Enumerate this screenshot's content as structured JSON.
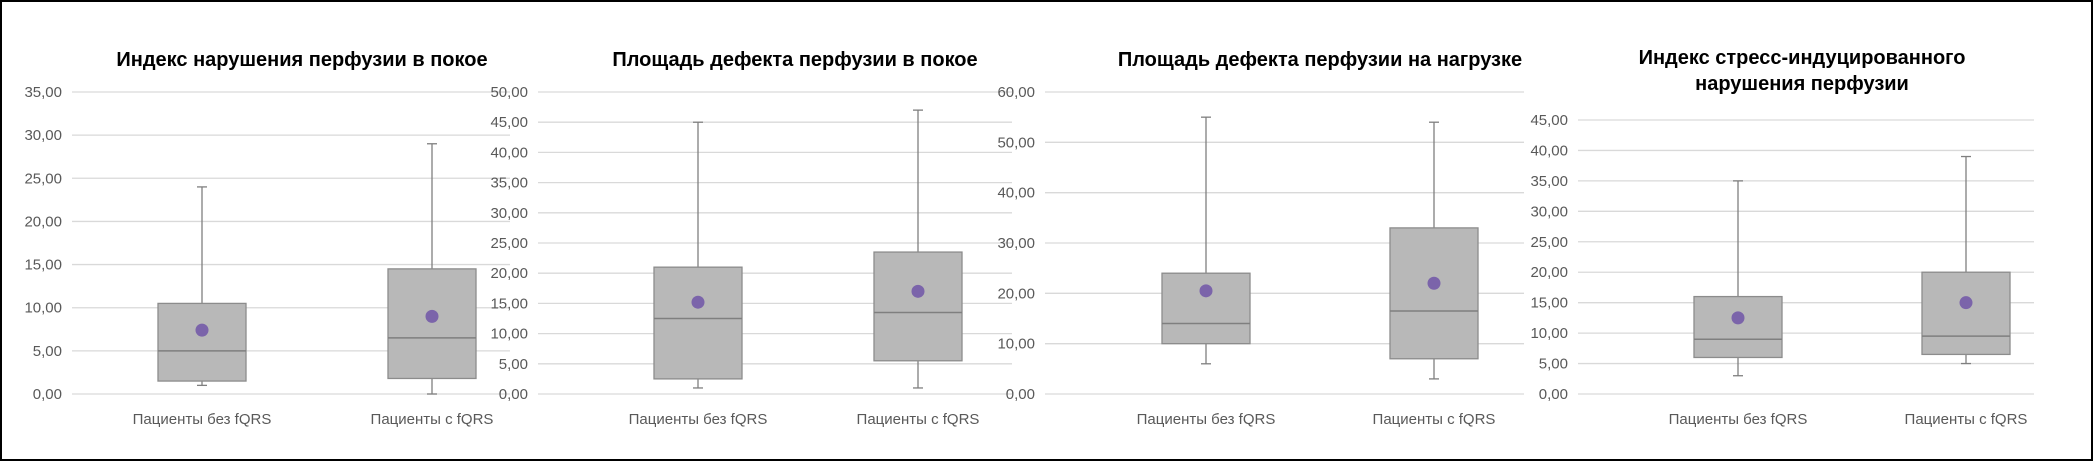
{
  "colors": {
    "box_fill": "#b8b8b8",
    "box_stroke": "#8c8c8c",
    "median": "#7f7f7f",
    "whisker": "#7f7f7f",
    "mean_marker": "#7b64aa",
    "grid": "#d9d9d9",
    "axis_text": "#595959"
  },
  "chart_data": [
    {
      "type": "box",
      "title": [
        "Индекс нарушения перфузии в покое"
      ],
      "ylim": [
        0,
        35
      ],
      "ytick_step": 5,
      "yticks": [
        "0,00",
        "5,00",
        "10,00",
        "15,00",
        "20,00",
        "25,00",
        "30,00",
        "35,00"
      ],
      "categories": [
        "Пациенты без fQRS",
        "Пациенты с fQRS"
      ],
      "series": [
        {
          "min": 1.0,
          "q1": 1.5,
          "median": 5.0,
          "q3": 10.5,
          "max": 24.0,
          "mean": 7.4
        },
        {
          "min": 0.0,
          "q1": 1.8,
          "median": 6.5,
          "q3": 14.5,
          "max": 29.0,
          "mean": 9.0
        }
      ]
    },
    {
      "type": "box",
      "title": [
        "Площадь дефекта перфузии в покое"
      ],
      "ylim": [
        0,
        50
      ],
      "ytick_step": 5,
      "yticks": [
        "0,00",
        "5,00",
        "10,00",
        "15,00",
        "20,00",
        "25,00",
        "30,00",
        "35,00",
        "40,00",
        "45,00",
        "50,00"
      ],
      "categories": [
        "Пациенты без fQRS",
        "Пациенты с fQRS"
      ],
      "series": [
        {
          "min": 1.0,
          "q1": 2.5,
          "median": 12.5,
          "q3": 21.0,
          "max": 45.0,
          "mean": 15.2
        },
        {
          "min": 1.0,
          "q1": 5.5,
          "median": 13.5,
          "q3": 23.5,
          "max": 47.0,
          "mean": 17.0
        }
      ]
    },
    {
      "type": "box",
      "title": [
        "Площадь дефекта перфузии на нагрузке"
      ],
      "ylim": [
        0,
        60
      ],
      "ytick_step": 10,
      "yticks": [
        "0,00",
        "10,00",
        "20,00",
        "30,00",
        "40,00",
        "50,00",
        "60,00"
      ],
      "categories": [
        "Пациенты без fQRS",
        "Пациенты с fQRS"
      ],
      "series": [
        {
          "min": 6.0,
          "q1": 10.0,
          "median": 14.0,
          "q3": 24.0,
          "max": 55.0,
          "mean": 20.5
        },
        {
          "min": 3.0,
          "q1": 7.0,
          "median": 16.5,
          "q3": 33.0,
          "max": 54.0,
          "mean": 22.0
        }
      ]
    },
    {
      "type": "box",
      "title": [
        "Индекс стресс-индуцированного",
        "нарушения перфузии"
      ],
      "ylim": [
        0,
        45
      ],
      "ytick_step": 5,
      "yticks": [
        "0,00",
        "5,00",
        "10,00",
        "15,00",
        "20,00",
        "25,00",
        "30,00",
        "35,00",
        "40,00",
        "45,00"
      ],
      "categories": [
        "Пациенты без fQRS",
        "Пациенты с fQRS"
      ],
      "series": [
        {
          "min": 3.0,
          "q1": 6.0,
          "median": 9.0,
          "q3": 16.0,
          "max": 35.0,
          "mean": 12.5
        },
        {
          "min": 5.0,
          "q1": 6.5,
          "median": 9.5,
          "q3": 20.0,
          "max": 39.0,
          "mean": 15.0
        }
      ]
    }
  ]
}
